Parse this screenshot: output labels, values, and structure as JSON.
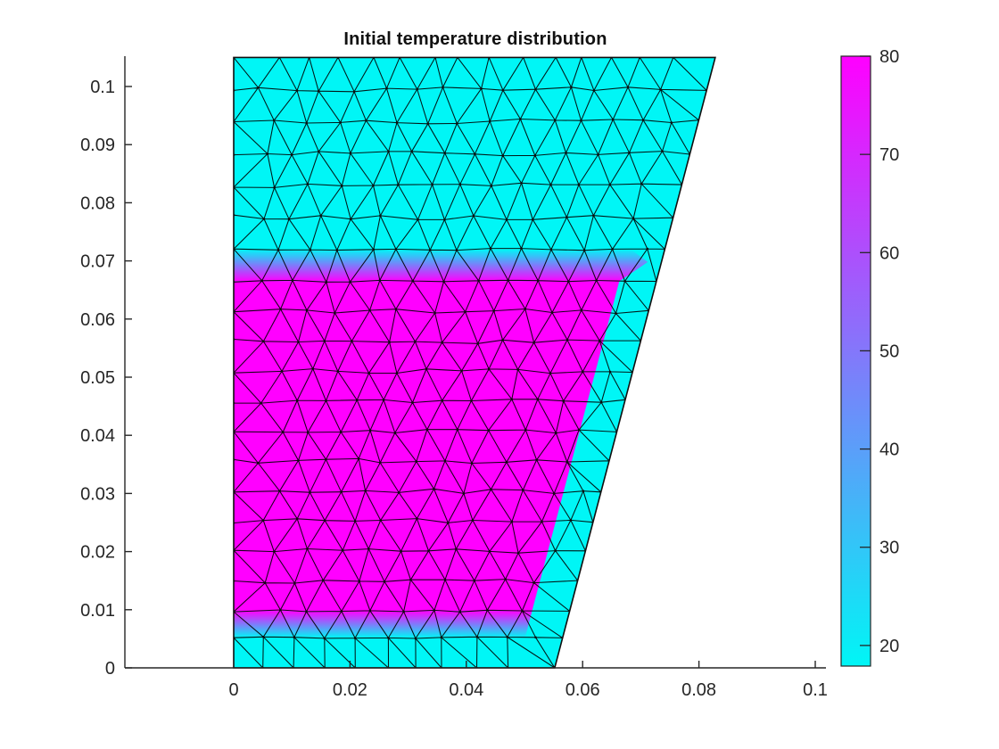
{
  "figure": {
    "background": "#ffffff"
  },
  "style": {
    "cyan": "#00f6f6",
    "magenta": "#ff00ff",
    "axis_color": "#262626",
    "label_color": "#262626",
    "title_color": "#111111",
    "mesh_line_color": "#000000",
    "mesh_node_color": "#0d0d0d",
    "boundary_color": "#101010"
  },
  "chart_data": {
    "type": "heatmap",
    "title": "Initial temperature distribution",
    "xlabel": "",
    "ylabel": "",
    "xlim": [
      -0.0188,
      0.1018
    ],
    "ylim": [
      0,
      0.105
    ],
    "grid": false,
    "legend": null,
    "x_ticks": {
      "values": [
        0,
        0.02,
        0.04,
        0.06,
        0.08,
        0.1
      ],
      "labels": [
        "0",
        "0.02",
        "0.04",
        "0.06",
        "0.08",
        "0.1"
      ]
    },
    "y_ticks": {
      "values": [
        0,
        0.01,
        0.02,
        0.03,
        0.04,
        0.05,
        0.06,
        0.07,
        0.08,
        0.09,
        0.1
      ],
      "labels": [
        "0",
        "0.01",
        "0.02",
        "0.03",
        "0.04",
        "0.05",
        "0.06",
        "0.07",
        "0.08",
        "0.09",
        "0.1"
      ]
    },
    "colorbar": {
      "position": "right",
      "colormap": "cool",
      "min": 17.9,
      "max": 80,
      "tick_values": [
        80,
        70,
        60,
        50,
        40,
        30,
        20
      ],
      "tick_labels": [
        "80",
        "70",
        "60",
        "50",
        "40",
        "30",
        "20"
      ],
      "color_top": "#ff00ff",
      "color_bottom": "#00f6f6"
    },
    "temperature": {
      "hot_region_value": 80,
      "cold_region_value": 20
    },
    "geometry": {
      "outer_polygon": [
        [
          0,
          0
        ],
        [
          0.0552,
          0
        ],
        [
          0.0828,
          0.105
        ],
        [
          0,
          0.105
        ]
      ],
      "hot_polygon": [
        [
          0,
          0.0098
        ],
        [
          0.0513,
          0.0098
        ],
        [
          0.0663,
          0.0665
        ],
        [
          0,
          0.0665
        ]
      ],
      "top_band": [
        [
          0,
          0.0665
        ],
        [
          0.0663,
          0.0665
        ],
        [
          0.0712,
          0.0698
        ],
        [
          0.0683,
          0.072
        ],
        [
          0,
          0.072
        ]
      ],
      "top_band_span": [
        0.0665,
        0.072
      ],
      "bottom_band": [
        [
          0,
          0.0052
        ],
        [
          0.0501,
          0.0052
        ],
        [
          0.0513,
          0.0098
        ],
        [
          0,
          0.0098
        ]
      ],
      "bottom_band_span": [
        0.0098,
        0.0052
      ]
    },
    "mesh": {
      "spacing": 0.00525,
      "bottom_rows_y": [
        0,
        0.0052,
        0.0098
      ],
      "hot_top_y": 0.0665,
      "domain_top_y": 0.105,
      "hot_rows": 11,
      "top_rows": 7,
      "seed": 11,
      "line_width": 1.05,
      "node_radius": 1.3
    }
  }
}
